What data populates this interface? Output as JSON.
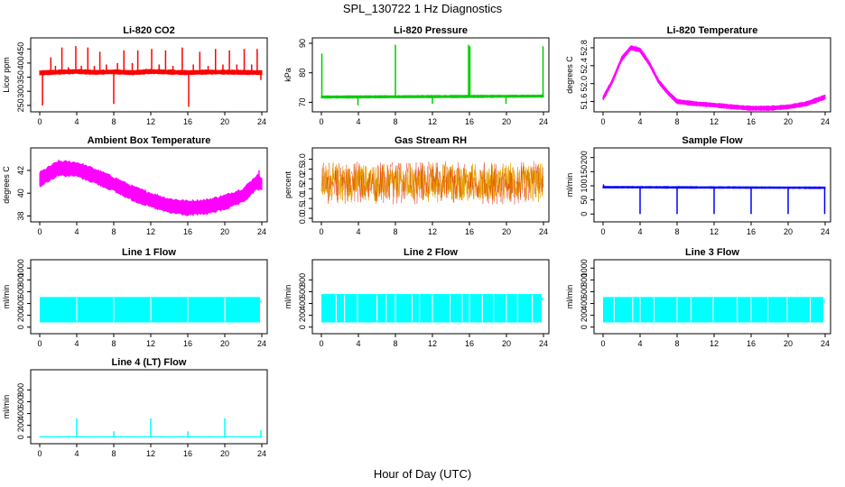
{
  "page": {
    "title": "SPL_130722  1 Hz Diagnostics",
    "xlabel": "Hour of Day (UTC)"
  },
  "chart_data": [
    {
      "type": "line",
      "title": "Li-820 CO2",
      "ylabel": "Licor ppm",
      "color": "#ff0000",
      "ylim": [
        240,
        470
      ],
      "yticks": [
        "250",
        "300",
        "350",
        "400",
        "450"
      ],
      "ytick_values": [
        250,
        300,
        350,
        400,
        450
      ],
      "xticks": [
        "0",
        "4",
        "8",
        "12",
        "16",
        "20",
        "24"
      ],
      "xtick_values": [
        0,
        4,
        8,
        12,
        16,
        20,
        24
      ],
      "xlim": [
        0,
        24
      ],
      "baseline": [
        [
          0,
          365
        ],
        [
          2,
          368
        ],
        [
          4,
          370
        ],
        [
          6,
          367
        ],
        [
          8,
          369
        ],
        [
          10,
          366
        ],
        [
          12,
          370
        ],
        [
          14,
          368
        ],
        [
          16,
          366
        ],
        [
          18,
          368
        ],
        [
          20,
          368
        ],
        [
          22,
          367
        ],
        [
          24,
          366
        ]
      ],
      "band": 8,
      "spikes": [
        [
          0.3,
          250
        ],
        [
          0.8,
          375
        ],
        [
          1.2,
          420
        ],
        [
          1.7,
          390
        ],
        [
          2.4,
          455
        ],
        [
          3.1,
          385
        ],
        [
          3.9,
          460
        ],
        [
          4.5,
          390
        ],
        [
          5.2,
          455
        ],
        [
          5.9,
          390
        ],
        [
          6.5,
          440
        ],
        [
          7.2,
          395
        ],
        [
          8.0,
          255
        ],
        [
          8.4,
          400
        ],
        [
          9.1,
          445
        ],
        [
          10.0,
          400
        ],
        [
          10.6,
          445
        ],
        [
          11.5,
          380
        ],
        [
          12.1,
          450
        ],
        [
          12.9,
          395
        ],
        [
          13.6,
          445
        ],
        [
          14.4,
          390
        ],
        [
          15.4,
          455
        ],
        [
          16.1,
          245
        ],
        [
          16.6,
          395
        ],
        [
          17.3,
          440
        ],
        [
          18.2,
          390
        ],
        [
          19.0,
          450
        ],
        [
          19.8,
          395
        ],
        [
          20.5,
          445
        ],
        [
          21.3,
          395
        ],
        [
          22.1,
          450
        ],
        [
          22.9,
          395
        ],
        [
          23.5,
          450
        ],
        [
          23.9,
          340
        ]
      ]
    },
    {
      "type": "line",
      "title": "Li-820 Pressure",
      "ylabel": "kPa",
      "color": "#00cc00",
      "ylim": [
        68,
        90
      ],
      "yticks": [
        "70",
        "80",
        "90"
      ],
      "ytick_values": [
        70,
        80,
        90
      ],
      "xticks": [
        "0",
        "4",
        "8",
        "12",
        "16",
        "20",
        "24"
      ],
      "xtick_values": [
        0,
        4,
        8,
        12,
        16,
        20,
        24
      ],
      "xlim": [
        0,
        24
      ],
      "baseline": [
        [
          0,
          71.8
        ],
        [
          8,
          71.9
        ],
        [
          16,
          72.0
        ],
        [
          24,
          72.1
        ]
      ],
      "band": 0.4,
      "spikes": [
        [
          0.05,
          86.5
        ],
        [
          3.95,
          69
        ],
        [
          8.0,
          89.5
        ],
        [
          12.0,
          69.5
        ],
        [
          15.9,
          89.5
        ],
        [
          16.05,
          89
        ],
        [
          19.95,
          69.5
        ],
        [
          23.95,
          89
        ]
      ]
    },
    {
      "type": "line",
      "title": "Li-820 Temperature",
      "ylabel": "degrees C",
      "color": "#ff00ff",
      "ylim": [
        51.45,
        52.9
      ],
      "yticks": [
        "51.6",
        "52.0",
        "52.4",
        "52.8"
      ],
      "ytick_values": [
        51.6,
        52.0,
        52.4,
        52.8
      ],
      "xticks": [
        "0",
        "4",
        "8",
        "12",
        "16",
        "20",
        "24"
      ],
      "xtick_values": [
        0,
        4,
        8,
        12,
        16,
        20,
        24
      ],
      "xlim": [
        0,
        24
      ],
      "baseline": [
        [
          0,
          51.67
        ],
        [
          1,
          52.05
        ],
        [
          2,
          52.55
        ],
        [
          3,
          52.8
        ],
        [
          4,
          52.75
        ],
        [
          5,
          52.45
        ],
        [
          6,
          52.05
        ],
        [
          7,
          51.8
        ],
        [
          8,
          51.6
        ],
        [
          10,
          51.55
        ],
        [
          12,
          51.52
        ],
        [
          14,
          51.48
        ],
        [
          16,
          51.45
        ],
        [
          18,
          51.45
        ],
        [
          20,
          51.48
        ],
        [
          22,
          51.55
        ],
        [
          24,
          51.7
        ]
      ],
      "band": 0.05,
      "spikes": []
    },
    {
      "type": "line",
      "title": "Ambient Box Temperature",
      "ylabel": "degrees C",
      "color": "#ff00ff",
      "ylim": [
        37.8,
        43.5
      ],
      "yticks": [
        "38",
        "40",
        "42"
      ],
      "ytick_values": [
        38,
        40,
        42
      ],
      "xticks": [
        "0",
        "4",
        "8",
        "12",
        "16",
        "20",
        "24"
      ],
      "xtick_values": [
        0,
        4,
        8,
        12,
        16,
        20,
        24
      ],
      "xlim": [
        0,
        24
      ],
      "baseline": [
        [
          0,
          41.2
        ],
        [
          2,
          42.2
        ],
        [
          4,
          42.1
        ],
        [
          6,
          41.5
        ],
        [
          8,
          40.8
        ],
        [
          10,
          40.0
        ],
        [
          12,
          39.4
        ],
        [
          14,
          38.9
        ],
        [
          16,
          38.7
        ],
        [
          18,
          38.8
        ],
        [
          20,
          39.2
        ],
        [
          22,
          39.8
        ],
        [
          23.5,
          41.0
        ],
        [
          24,
          40.8
        ]
      ],
      "band": 0.7,
      "spikes": [
        [
          23.7,
          42.0
        ],
        [
          16.0,
          38.0
        ]
      ]
    },
    {
      "type": "line",
      "title": "Gas Stream RH",
      "ylabel": "percent",
      "color": "#e6a000",
      "color2": "#dd0000",
      "ylim": [
        0,
        3.3
      ],
      "yticks": [
        "0.0",
        "0.5",
        "1.0",
        "1.5",
        "2.0",
        "2.5",
        "3.0"
      ],
      "ytick_values": [
        0,
        0.5,
        1.0,
        1.5,
        2.0,
        2.5,
        3.0
      ],
      "xticks": [
        "0",
        "4",
        "8",
        "12",
        "16",
        "20",
        "24"
      ],
      "xtick_values": [
        0,
        4,
        8,
        12,
        16,
        20,
        24
      ],
      "xlim": [
        0,
        24
      ],
      "baseline": [
        [
          0,
          1.8
        ],
        [
          24,
          1.8
        ]
      ],
      "band": 1.1,
      "noise": true,
      "spikes": []
    },
    {
      "type": "line",
      "title": "Sample Flow",
      "ylabel": "ml/min",
      "color": "#0000ff",
      "ylim": [
        -15,
        215
      ],
      "yticks": [
        "0",
        "50",
        "100",
        "150",
        "200"
      ],
      "ytick_values": [
        0,
        50,
        100,
        150,
        200
      ],
      "xticks": [
        "0",
        "4",
        "8",
        "12",
        "16",
        "20",
        "24"
      ],
      "xtick_values": [
        0,
        4,
        8,
        12,
        16,
        20,
        24
      ],
      "xlim": [
        0,
        24
      ],
      "baseline": [
        [
          0,
          95
        ],
        [
          24,
          93
        ]
      ],
      "band": 3,
      "spikes": [
        [
          0.05,
          105
        ],
        [
          4.0,
          0
        ],
        [
          8.0,
          0
        ],
        [
          12.0,
          0
        ],
        [
          16.0,
          0
        ],
        [
          20.0,
          0
        ],
        [
          23.95,
          0
        ]
      ]
    },
    {
      "type": "line",
      "title": "Line 1 Flow",
      "ylabel": "ml/min",
      "color": "#00ffff",
      "ylim": [
        -50,
        1050
      ],
      "yticks": [
        "0",
        "200",
        "400",
        "600",
        "800",
        "1000"
      ],
      "ytick_values": [
        0,
        200,
        400,
        600,
        800,
        1000
      ],
      "xticks": [
        "0",
        "4",
        "8",
        "12",
        "16",
        "20",
        "24"
      ],
      "xtick_values": [
        0,
        4,
        8,
        12,
        16,
        20,
        24
      ],
      "xlim": [
        0,
        24
      ],
      "fill": [
        80,
        510
      ],
      "gaps": [
        4.0,
        8.0,
        12.0,
        16.0,
        20.0
      ],
      "spikes": []
    },
    {
      "type": "line",
      "title": "Line 2 Flow",
      "ylabel": "ml/min",
      "color": "#00ffff",
      "ylim": [
        -50,
        1050
      ],
      "yticks": [
        "0",
        "200",
        "400",
        "600",
        "800"
      ],
      "ytick_values": [
        0,
        200,
        400,
        600,
        800
      ],
      "xticks": [
        "0",
        "4",
        "8",
        "12",
        "16",
        "20",
        "24"
      ],
      "xtick_values": [
        0,
        4,
        8,
        12,
        16,
        20,
        24
      ],
      "xlim": [
        0,
        24
      ],
      "fill": [
        80,
        560
      ],
      "gaps": [
        1.6,
        2.5,
        3.9,
        6.0,
        7.0,
        8.0,
        9.8,
        10.6,
        12.0,
        13.9,
        15.2,
        16.0,
        17.4,
        18.6,
        20.0,
        21.2,
        22.8
      ],
      "spikes": []
    },
    {
      "type": "line",
      "title": "Line 3 Flow",
      "ylabel": "ml/min",
      "color": "#00ffff",
      "ylim": [
        -50,
        1050
      ],
      "yticks": [
        "0",
        "200",
        "400",
        "600",
        "800",
        "1000"
      ],
      "ytick_values": [
        0,
        200,
        400,
        600,
        800,
        1000
      ],
      "xticks": [
        "0",
        "4",
        "8",
        "12",
        "16",
        "20",
        "24"
      ],
      "xtick_values": [
        0,
        4,
        8,
        12,
        16,
        20,
        24
      ],
      "xlim": [
        0,
        24
      ],
      "fill": [
        80,
        510
      ],
      "gaps": [
        1.2,
        3.2,
        4.0,
        5.5,
        8.0,
        9.5,
        11.9,
        14.5,
        16.0,
        17.8,
        19.9,
        22.4
      ],
      "spikes": [
        [
          4.0,
          -5
        ],
        [
          12.0,
          -5
        ],
        [
          20.0,
          -5
        ]
      ]
    },
    {
      "type": "line",
      "title": "Line 4 (LT) Flow",
      "ylabel": "ml/min",
      "color": "#00ffff",
      "ylim": [
        -50,
        1050
      ],
      "yticks": [
        "0",
        "200",
        "400",
        "600",
        "800"
      ],
      "ytick_values": [
        0,
        200,
        400,
        600,
        800
      ],
      "xticks": [
        "0",
        "4",
        "8",
        "12",
        "16",
        "20",
        "24"
      ],
      "xtick_values": [
        0,
        4,
        8,
        12,
        16,
        20,
        24
      ],
      "xlim": [
        0,
        24
      ],
      "baseline": [
        [
          0,
          5
        ],
        [
          24,
          5
        ]
      ],
      "band": 4,
      "spikes": [
        [
          4.0,
          320
        ],
        [
          8.0,
          100
        ],
        [
          12.0,
          320
        ],
        [
          16.0,
          100
        ],
        [
          20.0,
          320
        ],
        [
          23.9,
          120
        ]
      ]
    }
  ]
}
